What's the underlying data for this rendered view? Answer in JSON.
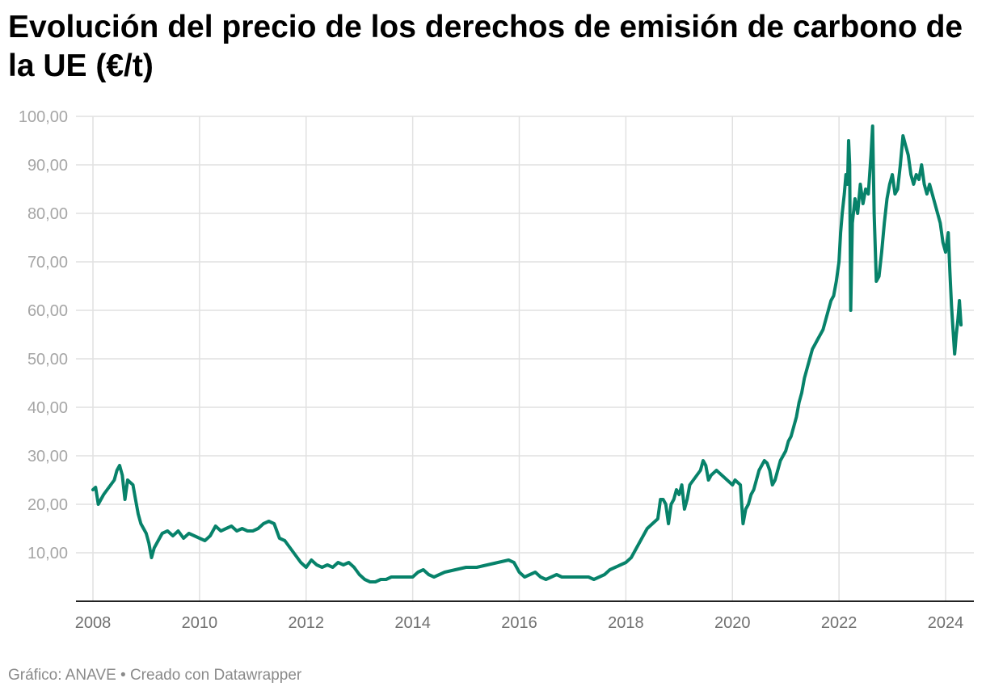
{
  "chart_data": {
    "type": "line",
    "title": "Evolución del precio de los derechos de emisión de carbono de la UE (€/t)",
    "xlabel": "",
    "ylabel": "",
    "xlim": [
      2008.0,
      2024.4
    ],
    "ylim": [
      0,
      100
    ],
    "x_ticks": [
      "2008",
      "2010",
      "2012",
      "2014",
      "2016",
      "2018",
      "2020",
      "2022",
      "2024"
    ],
    "y_ticks": [
      "10,00",
      "20,00",
      "30,00",
      "40,00",
      "50,00",
      "60,00",
      "70,00",
      "80,00",
      "90,00",
      "100,00"
    ],
    "grid": true,
    "line_color": "#07826a",
    "series": [
      {
        "name": "",
        "x": [
          2008.0,
          2008.05,
          2008.1,
          2008.2,
          2008.3,
          2008.4,
          2008.45,
          2008.5,
          2008.55,
          2008.6,
          2008.65,
          2008.7,
          2008.75,
          2008.8,
          2008.85,
          2008.9,
          2008.95,
          2009.0,
          2009.05,
          2009.1,
          2009.15,
          2009.2,
          2009.3,
          2009.4,
          2009.5,
          2009.6,
          2009.7,
          2009.8,
          2009.9,
          2010.0,
          2010.1,
          2010.2,
          2010.3,
          2010.4,
          2010.5,
          2010.6,
          2010.7,
          2010.8,
          2010.9,
          2011.0,
          2011.1,
          2011.2,
          2011.3,
          2011.4,
          2011.5,
          2011.6,
          2011.7,
          2011.8,
          2011.9,
          2012.0,
          2012.1,
          2012.2,
          2012.3,
          2012.4,
          2012.5,
          2012.6,
          2012.7,
          2012.8,
          2012.9,
          2013.0,
          2013.1,
          2013.2,
          2013.3,
          2013.4,
          2013.5,
          2013.6,
          2013.7,
          2013.8,
          2013.9,
          2014.0,
          2014.1,
          2014.2,
          2014.3,
          2014.4,
          2014.5,
          2014.6,
          2014.8,
          2015.0,
          2015.2,
          2015.4,
          2015.6,
          2015.8,
          2015.9,
          2016.0,
          2016.1,
          2016.2,
          2016.3,
          2016.4,
          2016.5,
          2016.6,
          2016.7,
          2016.8,
          2016.9,
          2017.0,
          2017.1,
          2017.2,
          2017.3,
          2017.4,
          2017.5,
          2017.6,
          2017.7,
          2017.8,
          2017.9,
          2018.0,
          2018.1,
          2018.2,
          2018.3,
          2018.4,
          2018.5,
          2018.6,
          2018.65,
          2018.7,
          2018.75,
          2018.8,
          2018.85,
          2018.9,
          2018.95,
          2019.0,
          2019.05,
          2019.1,
          2019.15,
          2019.2,
          2019.3,
          2019.4,
          2019.45,
          2019.5,
          2019.55,
          2019.6,
          2019.7,
          2019.8,
          2019.9,
          2020.0,
          2020.05,
          2020.1,
          2020.15,
          2020.2,
          2020.25,
          2020.3,
          2020.35,
          2020.4,
          2020.45,
          2020.5,
          2020.55,
          2020.6,
          2020.65,
          2020.7,
          2020.75,
          2020.8,
          2020.85,
          2020.9,
          2020.95,
          2021.0,
          2021.05,
          2021.1,
          2021.15,
          2021.2,
          2021.25,
          2021.3,
          2021.35,
          2021.4,
          2021.45,
          2021.5,
          2021.55,
          2021.6,
          2021.65,
          2021.7,
          2021.75,
          2021.8,
          2021.85,
          2021.9,
          2021.95,
          2022.0,
          2022.03,
          2022.06,
          2022.1,
          2022.13,
          2022.16,
          2022.18,
          2022.2,
          2022.22,
          2022.25,
          2022.3,
          2022.35,
          2022.4,
          2022.45,
          2022.5,
          2022.55,
          2022.6,
          2022.63,
          2022.66,
          2022.7,
          2022.75,
          2022.8,
          2022.85,
          2022.9,
          2022.95,
          2023.0,
          2023.05,
          2023.1,
          2023.15,
          2023.2,
          2023.25,
          2023.3,
          2023.35,
          2023.4,
          2023.45,
          2023.5,
          2023.55,
          2023.6,
          2023.65,
          2023.7,
          2023.75,
          2023.8,
          2023.85,
          2023.9,
          2023.95,
          2024.0,
          2024.05,
          2024.08,
          2024.11,
          2024.14,
          2024.17,
          2024.2,
          2024.23,
          2024.26,
          2024.29
        ],
        "values": [
          23.0,
          23.5,
          20.0,
          22.0,
          23.5,
          25.0,
          27.0,
          28.0,
          26.0,
          21.0,
          25.0,
          24.5,
          24.0,
          21.0,
          18.0,
          16.0,
          15.0,
          14.0,
          12.0,
          9.0,
          11.0,
          12.0,
          14.0,
          14.5,
          13.5,
          14.5,
          13.0,
          14.0,
          13.5,
          13.0,
          12.5,
          13.5,
          15.5,
          14.5,
          15.0,
          15.5,
          14.5,
          15.0,
          14.5,
          14.5,
          15.0,
          16.0,
          16.5,
          16.0,
          13.0,
          12.5,
          11.0,
          9.5,
          8.0,
          7.0,
          8.5,
          7.5,
          7.0,
          7.5,
          7.0,
          8.0,
          7.5,
          8.0,
          7.0,
          5.5,
          4.5,
          4.0,
          4.0,
          4.5,
          4.5,
          5.0,
          5.0,
          5.0,
          5.0,
          5.0,
          6.0,
          6.5,
          5.5,
          5.0,
          5.5,
          6.0,
          6.5,
          7.0,
          7.0,
          7.5,
          8.0,
          8.5,
          8.0,
          6.0,
          5.0,
          5.5,
          6.0,
          5.0,
          4.5,
          5.0,
          5.5,
          5.0,
          5.0,
          5.0,
          5.0,
          5.0,
          5.0,
          4.5,
          5.0,
          5.5,
          6.5,
          7.0,
          7.5,
          8.0,
          9.0,
          11.0,
          13.0,
          15.0,
          16.0,
          17.0,
          21.0,
          21.0,
          20.0,
          16.0,
          20.0,
          21.0,
          23.0,
          22.0,
          24.0,
          19.0,
          21.0,
          24.0,
          25.5,
          27.0,
          29.0,
          28.0,
          25.0,
          26.0,
          27.0,
          26.0,
          25.0,
          24.0,
          25.0,
          24.5,
          24.0,
          16.0,
          19.0,
          20.0,
          22.0,
          23.0,
          25.0,
          27.0,
          28.0,
          29.0,
          28.5,
          27.0,
          24.0,
          25.0,
          27.0,
          29.0,
          30.0,
          31.0,
          33.0,
          34.0,
          36.0,
          38.0,
          41.0,
          43.0,
          46.0,
          48.0,
          50.0,
          52.0,
          53.0,
          54.0,
          55.0,
          56.0,
          58.0,
          60.0,
          62.0,
          63.0,
          66.0,
          70.0,
          76.0,
          80.0,
          84.0,
          88.0,
          86.0,
          95.0,
          90.0,
          60.0,
          78.0,
          83.0,
          80.0,
          86.0,
          82.0,
          85.0,
          84.0,
          92.0,
          98.0,
          80.0,
          66.0,
          67.0,
          72.0,
          78.0,
          83.0,
          86.0,
          88.0,
          84.0,
          85.0,
          90.0,
          96.0,
          94.0,
          92.0,
          88.0,
          86.0,
          88.0,
          87.0,
          90.0,
          86.0,
          84.0,
          86.0,
          84.0,
          82.0,
          80.0,
          78.0,
          74.0,
          72.0,
          76.0,
          68.0,
          61.0,
          56.0,
          51.0,
          55.0,
          58.0,
          62.0,
          57.0
        ]
      }
    ]
  },
  "footer": "Gráfico: ANAVE • Creado con Datawrapper"
}
